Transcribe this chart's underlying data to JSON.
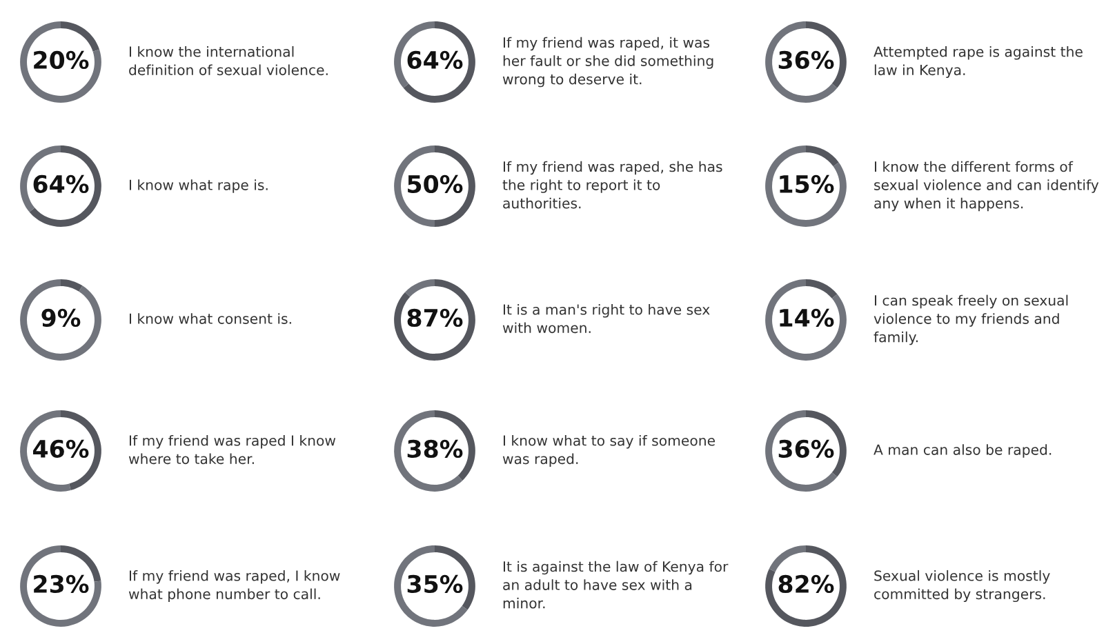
{
  "chart_data": [
    {
      "type": "donut",
      "title": "I know the international\ndefinition of sexual violence.",
      "categories": [
        null,
        null
      ],
      "values": [
        20,
        80
      ],
      "colors": [
        "#55575e",
        "#71747c"
      ],
      "value_labels": [
        "20%",
        null
      ]
    },
    {
      "type": "donut",
      "title": "If my friend was raped, it was\nher fault or she did something\nwrong to deserve it.",
      "categories": [
        null,
        null
      ],
      "values": [
        64,
        36
      ],
      "colors": [
        "#55575e",
        "#71747c"
      ],
      "value_labels": [
        "64%",
        null
      ]
    },
    {
      "type": "donut",
      "title": "Attempted rape is against the\nlaw in Kenya.",
      "categories": [
        null,
        null
      ],
      "values": [
        36,
        64
      ],
      "colors": [
        "#55575e",
        "#71747c"
      ],
      "value_labels": [
        "36%",
        null
      ]
    },
    {
      "type": "donut",
      "title": "I know what rape is.",
      "categories": [
        null,
        null
      ],
      "values": [
        64,
        36
      ],
      "colors": [
        "#55575e",
        "#71747c"
      ],
      "value_labels": [
        "64%",
        null
      ]
    },
    {
      "type": "donut",
      "title": "If my friend was raped, she has\nthe right to report it to\nauthorities.",
      "categories": [
        null,
        null
      ],
      "values": [
        50,
        50
      ],
      "colors": [
        "#55575e",
        "#71747c"
      ],
      "value_labels": [
        "50%",
        null
      ]
    },
    {
      "type": "donut",
      "title": "I know the different forms of\nsexual violence and can identify\nany when it happens.",
      "categories": [
        null,
        null
      ],
      "values": [
        15,
        85
      ],
      "colors": [
        "#55575e",
        "#71747c"
      ],
      "value_labels": [
        "15%",
        null
      ]
    },
    {
      "type": "donut",
      "title": "I know what consent is.",
      "categories": [
        null,
        null
      ],
      "values": [
        9,
        91
      ],
      "colors": [
        "#55575e",
        "#71747c"
      ],
      "value_labels": [
        "9%",
        null
      ]
    },
    {
      "type": "donut",
      "title": "It is a man's right to have sex\nwith women.",
      "categories": [
        null,
        null
      ],
      "values": [
        87,
        13
      ],
      "colors": [
        "#55575e",
        "#71747c"
      ],
      "value_labels": [
        "87%",
        null
      ]
    },
    {
      "type": "donut",
      "title": "I can speak freely on sexual\nviolence to my friends and\nfamily.",
      "categories": [
        null,
        null
      ],
      "values": [
        14,
        86
      ],
      "colors": [
        "#55575e",
        "#71747c"
      ],
      "value_labels": [
        "14%",
        null
      ]
    },
    {
      "type": "donut",
      "title": "If my friend was raped I know\nwhere to take her.",
      "categories": [
        null,
        null
      ],
      "values": [
        46,
        54
      ],
      "colors": [
        "#55575e",
        "#71747c"
      ],
      "value_labels": [
        "46%",
        null
      ]
    },
    {
      "type": "donut",
      "title": "I know what to say if someone\nwas raped.",
      "categories": [
        null,
        null
      ],
      "values": [
        38,
        62
      ],
      "colors": [
        "#55575e",
        "#71747c"
      ],
      "value_labels": [
        "38%",
        null
      ]
    },
    {
      "type": "donut",
      "title": "A man can also be raped.",
      "categories": [
        null,
        null
      ],
      "values": [
        36,
        64
      ],
      "colors": [
        "#55575e",
        "#71747c"
      ],
      "value_labels": [
        "36%",
        null
      ]
    },
    {
      "type": "donut",
      "title": "If my friend was raped, I know\nwhat phone number to call.",
      "categories": [
        null,
        null
      ],
      "values": [
        23,
        77
      ],
      "colors": [
        "#55575e",
        "#71747c"
      ],
      "value_labels": [
        "23%",
        null
      ]
    },
    {
      "type": "donut",
      "title": "It is against the law of Kenya for\nan adult to have sex with a\nminor.",
      "categories": [
        null,
        null
      ],
      "values": [
        35,
        65
      ],
      "colors": [
        "#55575e",
        "#71747c"
      ],
      "value_labels": [
        "35%",
        null
      ]
    },
    {
      "type": "donut",
      "title": "Sexual violence is mostly\ncommitted by strangers.",
      "categories": [
        null,
        null
      ],
      "values": [
        82,
        18
      ],
      "colors": [
        "#55575e",
        "#71747c"
      ],
      "value_labels": [
        "82%",
        null
      ]
    }
  ]
}
